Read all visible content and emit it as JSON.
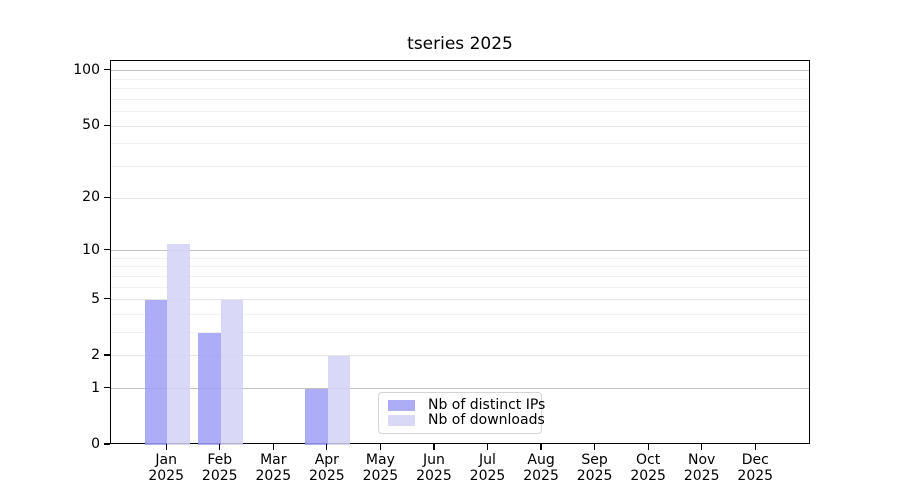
{
  "chart_data": {
    "type": "bar",
    "title": "tseries 2025",
    "year": "2025",
    "categories": [
      "Jan",
      "Feb",
      "Mar",
      "Apr",
      "May",
      "Jun",
      "Jul",
      "Aug",
      "Sep",
      "Oct",
      "Nov",
      "Dec"
    ],
    "series": [
      {
        "name": "Nb of distinct IPs",
        "color": "#9e9ef6",
        "values": [
          5,
          3,
          0,
          1,
          0,
          0,
          0,
          0,
          0,
          0,
          0,
          0
        ]
      },
      {
        "name": "Nb of downloads",
        "color": "#d2d2f6",
        "values": [
          11,
          5,
          0,
          2,
          0,
          0,
          0,
          0,
          0,
          0,
          0,
          0
        ]
      }
    ],
    "yscale": "log1p",
    "yticks": [
      0,
      1,
      2,
      5,
      10,
      20,
      50,
      100
    ],
    "ylim": [
      0,
      113
    ],
    "xlabel": "",
    "ylabel": "",
    "grid": true,
    "legend_position": "lower center",
    "colors": {
      "axis": "#000000",
      "text": "#000000",
      "grid_major": "#c2c2c2",
      "grid_mid": "#e6e6e6",
      "grid_minor": "#f1f1f1",
      "legend_border": "#d4d4d4"
    }
  }
}
